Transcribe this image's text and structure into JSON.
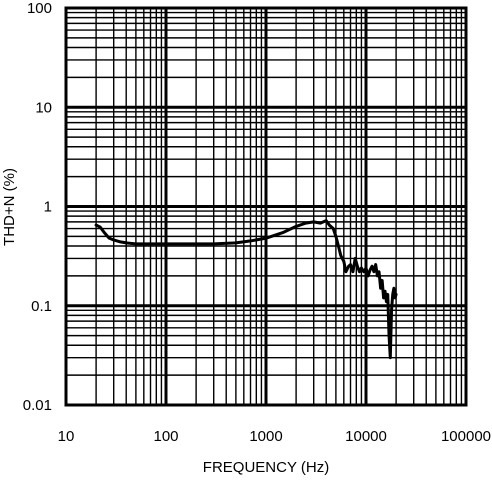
{
  "chart_data": {
    "type": "line",
    "xlabel": "FREQUENCY (Hz)",
    "ylabel": "THD+N (%)",
    "x_scale": "log",
    "y_scale": "log",
    "xlim": [
      10,
      100000
    ],
    "ylim": [
      0.01,
      100
    ],
    "x_ticks": [
      {
        "value": 10,
        "label": "10"
      },
      {
        "value": 100,
        "label": "100"
      },
      {
        "value": 1000,
        "label": "1000"
      },
      {
        "value": 10000,
        "label": "10000"
      },
      {
        "value": 100000,
        "label": "100000"
      }
    ],
    "y_ticks": [
      {
        "value": 100,
        "label": "100"
      },
      {
        "value": 10,
        "label": "10"
      },
      {
        "value": 1,
        "label": "1"
      },
      {
        "value": 0.1,
        "label": "0.1"
      },
      {
        "value": 0.01,
        "label": "0.01"
      }
    ],
    "grid": true,
    "legend": "none",
    "line_color": "#000000",
    "series": [
      {
        "x": [
          20,
          22,
          24,
          27,
          30,
          35,
          40,
          50,
          60,
          80,
          100,
          150,
          200,
          300,
          500,
          700,
          1000,
          1500,
          2000,
          2500,
          3000,
          3500,
          4000,
          4300,
          4700,
          5000,
          5300,
          5600,
          6000,
          6300,
          6700,
          7000,
          7400,
          7800,
          8200,
          8600,
          9000,
          9500,
          10000,
          10500,
          11000,
          11500,
          12000,
          12500,
          13000,
          13500,
          14000,
          14500,
          15000,
          15500,
          16000,
          16500,
          17000,
          17500,
          18000,
          18500,
          19000,
          19500,
          20000
        ],
        "y": [
          0.65,
          0.62,
          0.55,
          0.48,
          0.46,
          0.44,
          0.43,
          0.42,
          0.42,
          0.42,
          0.42,
          0.42,
          0.42,
          0.42,
          0.43,
          0.45,
          0.48,
          0.55,
          0.63,
          0.68,
          0.7,
          0.68,
          0.72,
          0.65,
          0.6,
          0.5,
          0.4,
          0.32,
          0.28,
          0.22,
          0.25,
          0.26,
          0.22,
          0.3,
          0.25,
          0.22,
          0.24,
          0.22,
          0.24,
          0.2,
          0.23,
          0.25,
          0.22,
          0.26,
          0.2,
          0.22,
          0.15,
          0.18,
          0.12,
          0.14,
          0.11,
          0.13,
          0.05,
          0.03,
          0.09,
          0.13,
          0.15,
          0.12,
          0.13
        ]
      }
    ]
  }
}
